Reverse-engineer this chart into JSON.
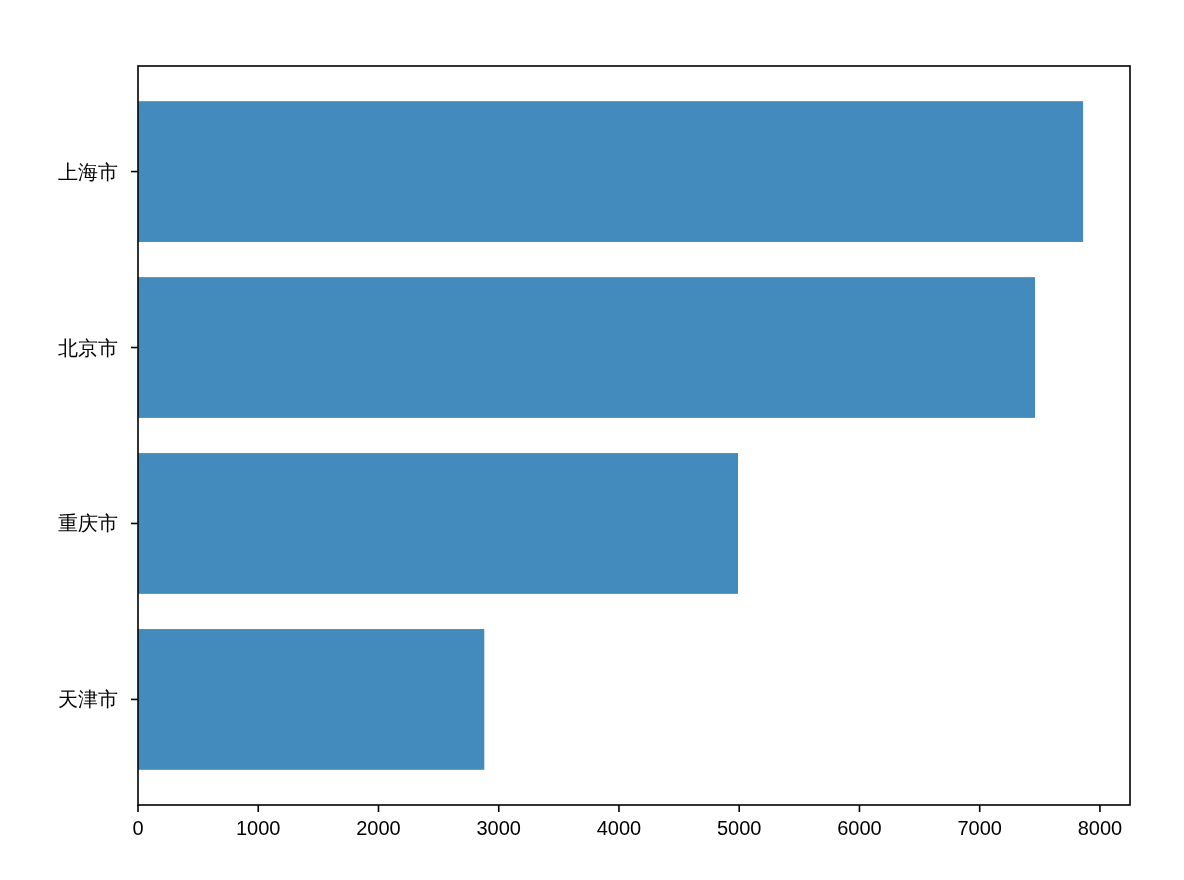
{
  "chart_data": {
    "type": "bar",
    "orientation": "horizontal",
    "categories": [
      "上海市",
      "北京市",
      "重庆市",
      "天津市"
    ],
    "values": [
      7860,
      7460,
      4990,
      2880
    ],
    "color": "#438bbd",
    "xlim": [
      0,
      8250
    ],
    "xticks": [
      0,
      1000,
      2000,
      3000,
      4000,
      5000,
      6000,
      7000,
      8000
    ]
  }
}
